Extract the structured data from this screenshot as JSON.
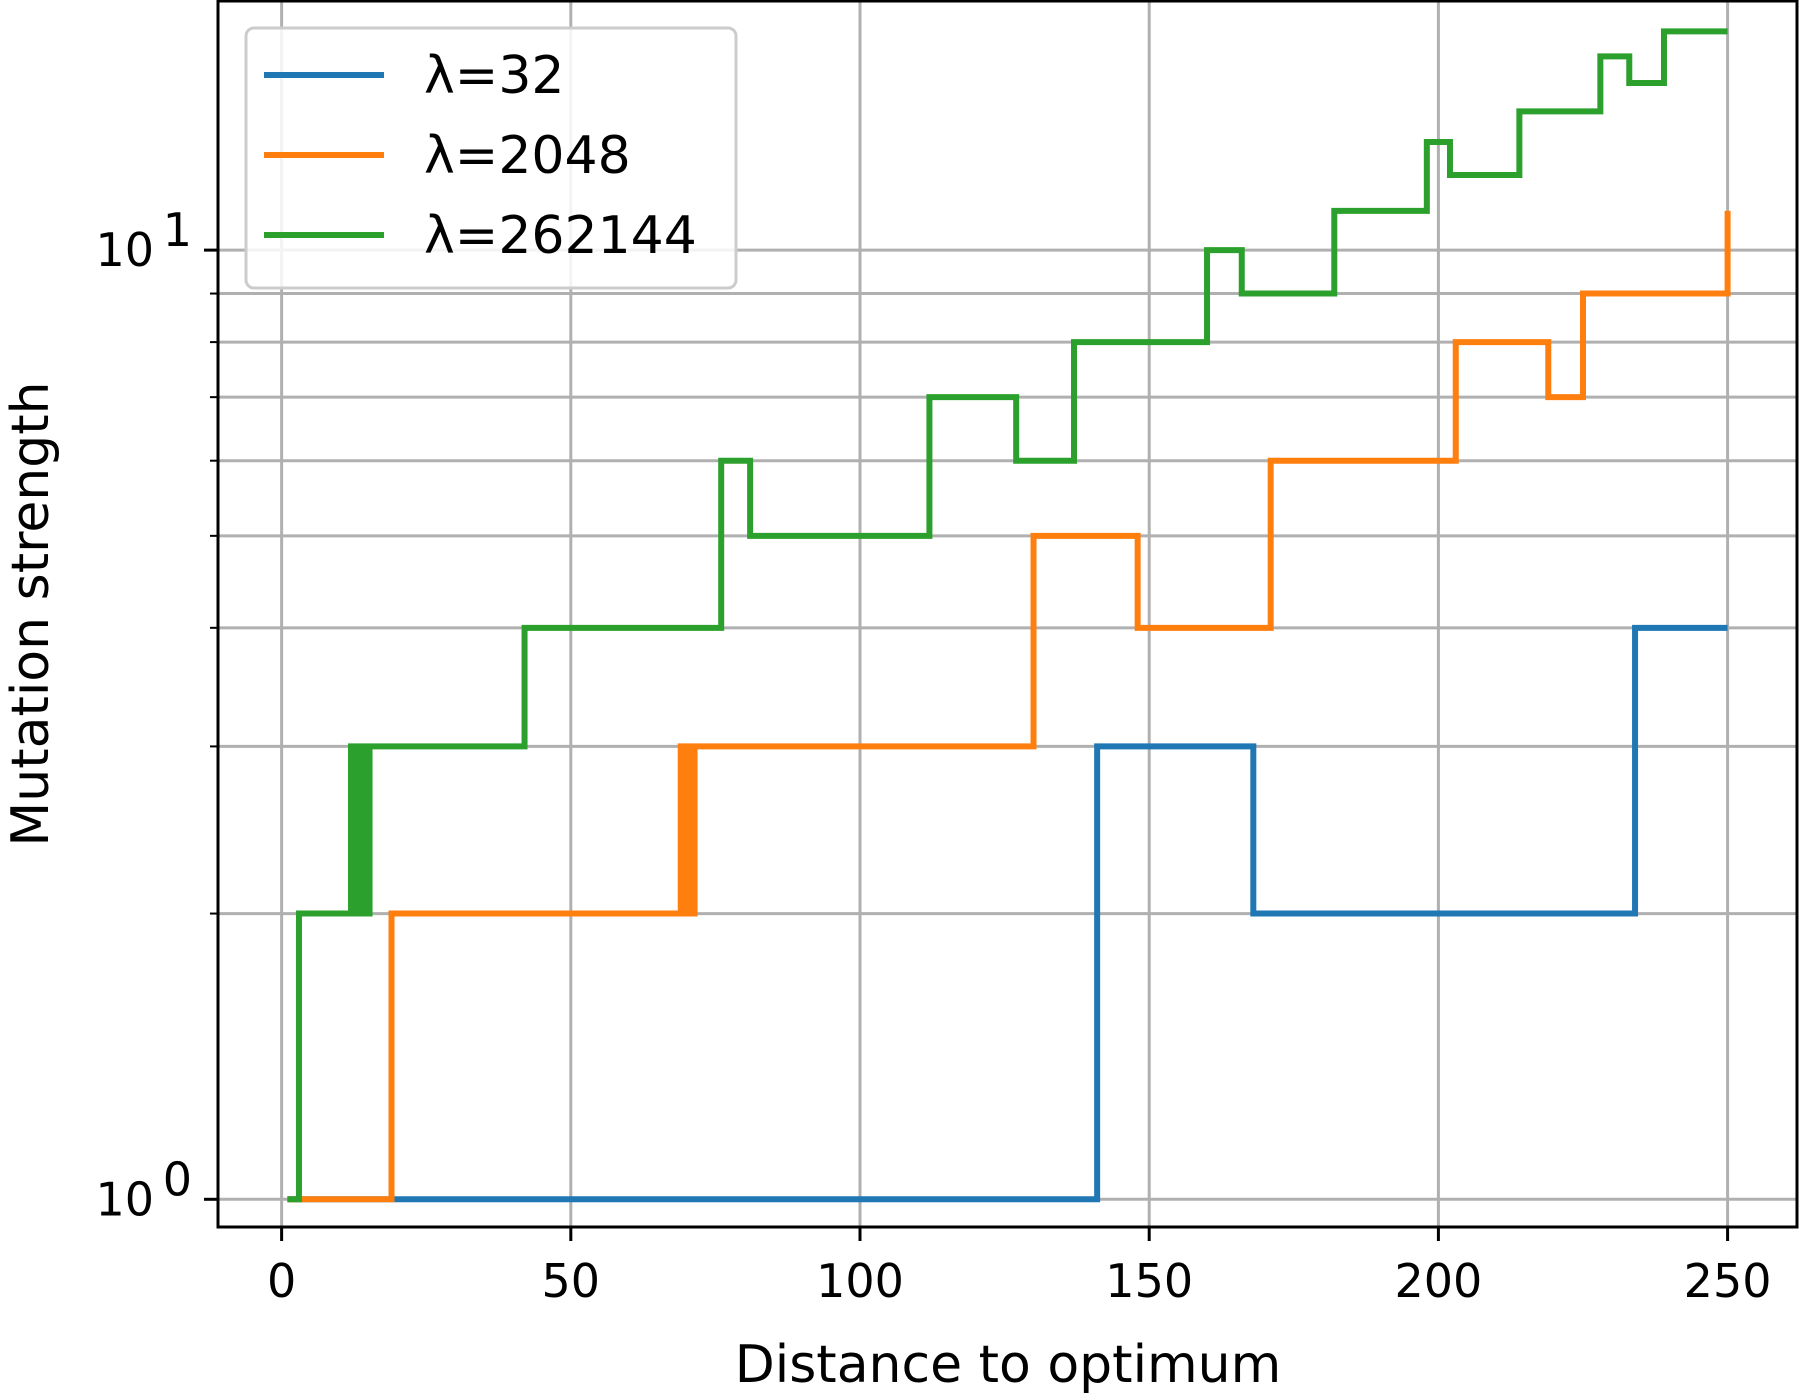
{
  "chart_data": {
    "type": "line",
    "step": true,
    "xlabel": "Distance to optimum",
    "ylabel": "Mutation strength",
    "xlim": [
      -11,
      262
    ],
    "ylim": [
      0.935,
      18.3
    ],
    "yscale": "log",
    "grid": true,
    "legend_position": "top-left",
    "x_ticks": [
      0,
      50,
      100,
      150,
      200,
      250
    ],
    "y_major_ticks": [
      1,
      10
    ],
    "y_major_tick_labels": [
      {
        "base": "10",
        "exp": "0"
      },
      {
        "base": "10",
        "exp": "1"
      }
    ],
    "y_minor_ticks": [
      2,
      3,
      4,
      5,
      6,
      7,
      8,
      9
    ],
    "series": [
      {
        "name": "λ=32",
        "color": "#1f77b4",
        "points": [
          [
            1,
            1
          ],
          [
            141,
            1
          ],
          [
            141,
            3
          ],
          [
            168,
            3
          ],
          [
            168,
            2
          ],
          [
            234,
            2
          ],
          [
            234,
            4
          ],
          [
            250,
            4
          ]
        ]
      },
      {
        "name": "λ=2048",
        "color": "#ff7f0e",
        "points": [
          [
            1,
            1
          ],
          [
            19,
            1
          ],
          [
            19,
            2
          ],
          [
            69,
            2
          ],
          [
            69,
            3
          ],
          [
            69.6,
            3
          ],
          [
            69.6,
            2
          ],
          [
            70.2,
            2
          ],
          [
            70.2,
            3
          ],
          [
            70.8,
            3
          ],
          [
            70.8,
            2
          ],
          [
            71.4,
            2
          ],
          [
            71.4,
            3
          ],
          [
            130,
            3
          ],
          [
            130,
            5
          ],
          [
            148,
            5
          ],
          [
            148,
            4
          ],
          [
            171,
            4
          ],
          [
            171,
            6
          ],
          [
            203,
            6
          ],
          [
            203,
            8
          ],
          [
            219,
            8
          ],
          [
            219,
            7
          ],
          [
            225,
            7
          ],
          [
            225,
            9
          ],
          [
            250,
            9
          ],
          [
            250,
            11
          ]
        ]
      },
      {
        "name": "λ=262144",
        "color": "#2ca02c",
        "points": [
          [
            1,
            1
          ],
          [
            3,
            1
          ],
          [
            3,
            2
          ],
          [
            12,
            2
          ],
          [
            12,
            3
          ],
          [
            12.8,
            3
          ],
          [
            12.8,
            2
          ],
          [
            13.6,
            2
          ],
          [
            13.6,
            3
          ],
          [
            14.4,
            3
          ],
          [
            14.4,
            2
          ],
          [
            15.2,
            2
          ],
          [
            15.2,
            3
          ],
          [
            16,
            3
          ],
          [
            42,
            3
          ],
          [
            42,
            4
          ],
          [
            76,
            4
          ],
          [
            76,
            6
          ],
          [
            81,
            6
          ],
          [
            81,
            5
          ],
          [
            112,
            5
          ],
          [
            112,
            7
          ],
          [
            127,
            7
          ],
          [
            127,
            6
          ],
          [
            137,
            6
          ],
          [
            137,
            8
          ],
          [
            160,
            8
          ],
          [
            160,
            10
          ],
          [
            166,
            10
          ],
          [
            166,
            9
          ],
          [
            182,
            9
          ],
          [
            182,
            11
          ],
          [
            198,
            11
          ],
          [
            198,
            13
          ],
          [
            202,
            13
          ],
          [
            202,
            12
          ],
          [
            214,
            12
          ],
          [
            214,
            14
          ],
          [
            228,
            14
          ],
          [
            228,
            16
          ],
          [
            233,
            16
          ],
          [
            233,
            15
          ],
          [
            239,
            15
          ],
          [
            239,
            17
          ],
          [
            250,
            17
          ]
        ]
      }
    ]
  }
}
